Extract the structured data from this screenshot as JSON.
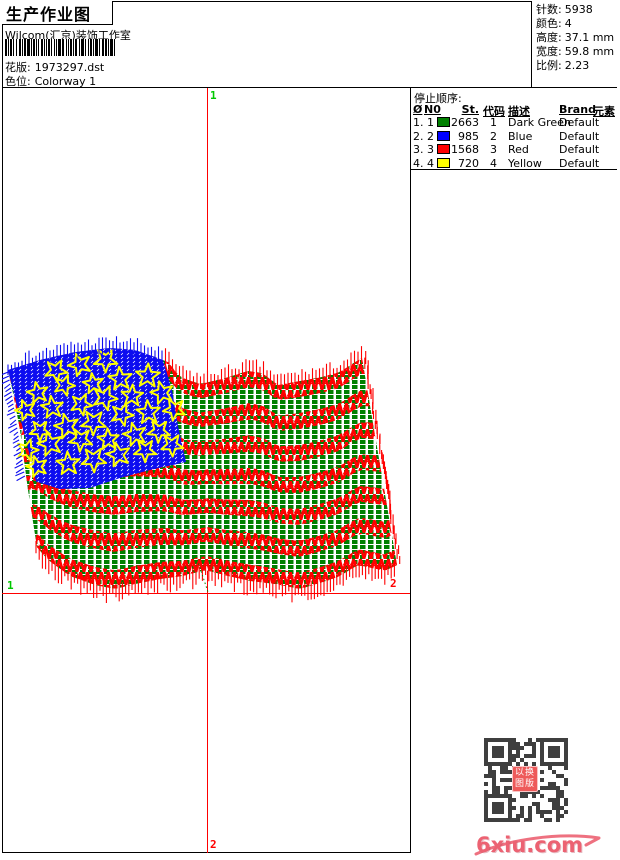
{
  "header": {
    "title": "生产作业图",
    "studio": "Wilcom(汇京)装饰工作室",
    "design_label": "花版:",
    "design_value": "1973297.dst",
    "colorway_label": "色位:",
    "colorway_value": "Colorway 1",
    "stats": [
      {
        "label": "针数:",
        "value": "5938"
      },
      {
        "label": "颜色:",
        "value": "4"
      },
      {
        "label": "高度:",
        "value": "37.1 mm"
      },
      {
        "label": "宽度:",
        "value": "59.8 mm"
      },
      {
        "label": "比例:",
        "value": "2.23"
      }
    ]
  },
  "stop_sequence": {
    "title": "停止顺序:",
    "columns": [
      "Ø",
      "N0",
      "St.",
      "代码",
      "描述",
      "Brand",
      "元素"
    ],
    "rows": [
      {
        "seq": "1. 1",
        "color": "#008000",
        "stitches": "2663",
        "code": "1",
        "description": "Dark Green",
        "brand": "Default",
        "element": ""
      },
      {
        "seq": "2. 2",
        "color": "#0000ff",
        "stitches": "985",
        "code": "2",
        "description": "Blue",
        "brand": "Default",
        "element": ""
      },
      {
        "seq": "3. 3",
        "color": "#ff0000",
        "stitches": "1568",
        "code": "3",
        "description": "Red",
        "brand": "Default",
        "element": ""
      },
      {
        "seq": "4. 4",
        "color": "#ffff00",
        "stitches": "720",
        "code": "4",
        "description": "Yellow",
        "brand": "Default",
        "element": ""
      }
    ]
  },
  "design_area": {
    "design_description": "Wavy US flag embroidery stitch preview",
    "crosshair_color": "#ff0000",
    "marker_start_color": "#00c800",
    "marker_end_color": "#ff0000",
    "markers": {
      "v_top": "1",
      "v_bottom": "2",
      "h_left": "1",
      "h_right": "2"
    },
    "thread_colors": {
      "dark_green": "#008000",
      "blue": "#0d0df0",
      "red": "#ff0000",
      "yellow": "#ffff00"
    }
  },
  "watermark": {
    "stamp_rows": [
      "以换",
      "图版"
    ],
    "logo_text": "6xiu.com",
    "logo_color": "#ec6272",
    "qr_color": "#3f3f3f"
  }
}
